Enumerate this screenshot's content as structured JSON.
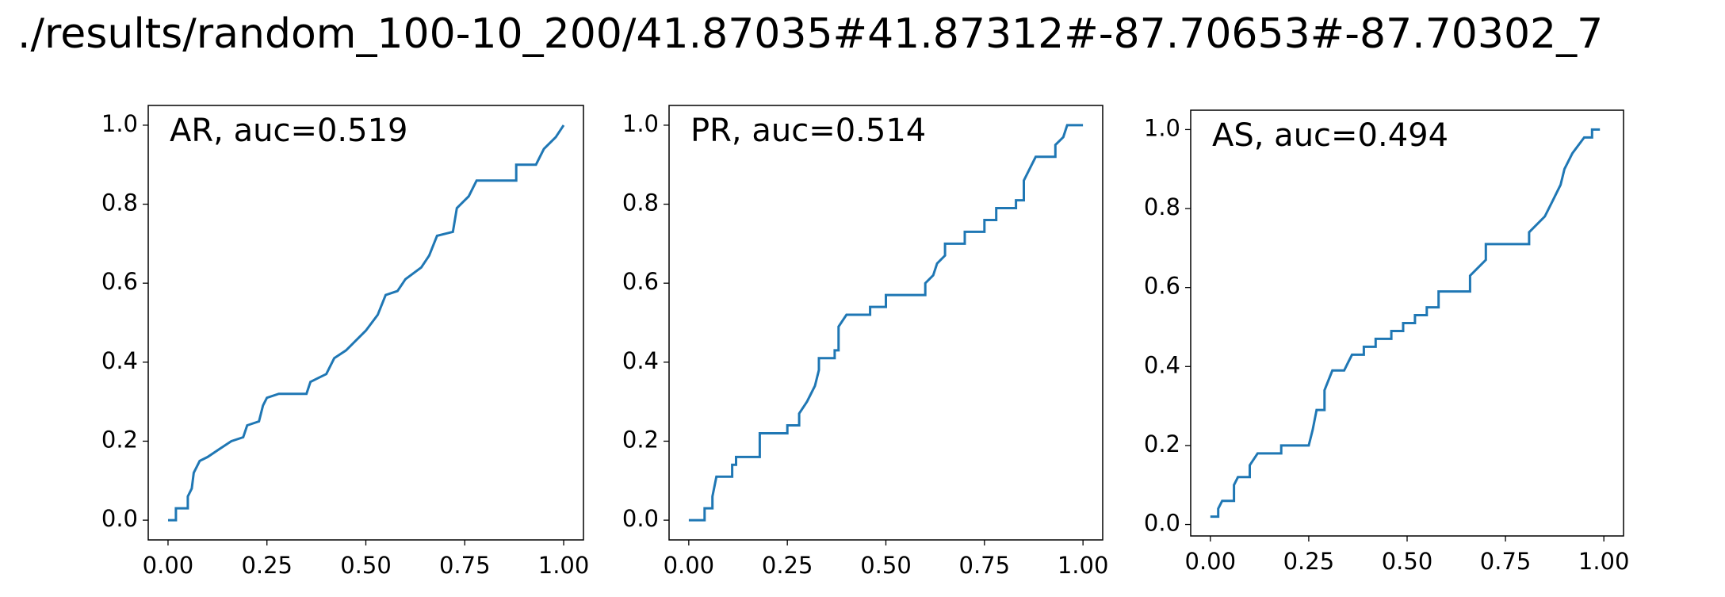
{
  "title": "./results/random_100-10_200/41.87035#41.87312#-87.70653#-87.70302_7",
  "chart_data": [
    {
      "type": "line",
      "annotation": "AR, auc=0.519",
      "xlim": [
        -0.05,
        1.05
      ],
      "ylim": [
        -0.05,
        1.05
      ],
      "xticks": [
        {
          "value": 0,
          "label": "0.00"
        },
        0.25,
        {
          "value": 0.5,
          "label": "0.50"
        },
        0.75,
        {
          "value": 1,
          "label": "1.00"
        }
      ],
      "yticks": [
        {
          "value": 0,
          "label": "0.0"
        },
        0.2,
        0.4,
        0.6,
        0.8,
        {
          "value": 1,
          "label": "1.0"
        }
      ],
      "color": "#1f77b4",
      "x": [
        0,
        0.02,
        0.02,
        0.05,
        0.05,
        0.06,
        0.065,
        0.08,
        0.1,
        0.13,
        0.16,
        0.19,
        0.2,
        0.23,
        0.24,
        0.25,
        0.28,
        0.35,
        0.36,
        0.38,
        0.4,
        0.42,
        0.45,
        0.47,
        0.5,
        0.53,
        0.55,
        0.58,
        0.6,
        0.64,
        0.66,
        0.68,
        0.72,
        0.73,
        0.76,
        0.78,
        0.88,
        0.88,
        0.93,
        0.95,
        0.98,
        1.0
      ],
      "values": [
        0,
        0,
        0.03,
        0.03,
        0.06,
        0.08,
        0.12,
        0.15,
        0.16,
        0.18,
        0.2,
        0.21,
        0.24,
        0.25,
        0.29,
        0.31,
        0.32,
        0.32,
        0.35,
        0.36,
        0.37,
        0.41,
        0.43,
        0.45,
        0.48,
        0.52,
        0.57,
        0.58,
        0.61,
        0.64,
        0.67,
        0.72,
        0.73,
        0.79,
        0.82,
        0.86,
        0.86,
        0.9,
        0.9,
        0.94,
        0.97,
        1.0
      ]
    },
    {
      "type": "line",
      "annotation": "PR, auc=0.514",
      "xlim": [
        -0.05,
        1.05
      ],
      "ylim": [
        -0.05,
        1.05
      ],
      "xticks": [
        {
          "value": 0,
          "label": "0.00"
        },
        0.25,
        {
          "value": 0.5,
          "label": "0.50"
        },
        0.75,
        {
          "value": 1,
          "label": "1.00"
        }
      ],
      "yticks": [
        {
          "value": 0,
          "label": "0.0"
        },
        0.2,
        0.4,
        0.6,
        0.8,
        {
          "value": 1,
          "label": "1.0"
        }
      ],
      "color": "#1f77b4",
      "x": [
        0,
        0.04,
        0.04,
        0.06,
        0.06,
        0.07,
        0.11,
        0.11,
        0.12,
        0.12,
        0.18,
        0.18,
        0.25,
        0.25,
        0.28,
        0.28,
        0.3,
        0.32,
        0.33,
        0.33,
        0.37,
        0.37,
        0.38,
        0.38,
        0.4,
        0.46,
        0.46,
        0.5,
        0.5,
        0.6,
        0.6,
        0.62,
        0.63,
        0.65,
        0.65,
        0.7,
        0.7,
        0.75,
        0.75,
        0.78,
        0.78,
        0.83,
        0.83,
        0.85,
        0.85,
        0.87,
        0.88,
        0.93,
        0.93,
        0.95,
        0.96,
        1.0
      ],
      "values": [
        0,
        0,
        0.03,
        0.03,
        0.06,
        0.11,
        0.11,
        0.14,
        0.14,
        0.16,
        0.16,
        0.22,
        0.22,
        0.24,
        0.24,
        0.27,
        0.3,
        0.34,
        0.38,
        0.41,
        0.41,
        0.43,
        0.43,
        0.49,
        0.52,
        0.52,
        0.54,
        0.54,
        0.57,
        0.57,
        0.6,
        0.62,
        0.65,
        0.67,
        0.7,
        0.7,
        0.73,
        0.73,
        0.76,
        0.76,
        0.79,
        0.79,
        0.81,
        0.81,
        0.86,
        0.9,
        0.92,
        0.92,
        0.95,
        0.97,
        1.0,
        1.0
      ]
    },
    {
      "type": "line",
      "annotation": "AS, auc=0.494",
      "xlim": [
        -0.05,
        1.05
      ],
      "ylim": [
        -0.029,
        1.049
      ],
      "xticks": [
        {
          "value": 0,
          "label": "0.00"
        },
        0.25,
        {
          "value": 0.5,
          "label": "0.50"
        },
        0.75,
        {
          "value": 1,
          "label": "1.00"
        }
      ],
      "yticks": [
        {
          "value": 0,
          "label": "0.0"
        },
        0.2,
        0.4,
        0.6,
        0.8,
        {
          "value": 1,
          "label": "1.0"
        }
      ],
      "color": "#1f77b4",
      "x": [
        0,
        0.02,
        0.02,
        0.03,
        0.06,
        0.06,
        0.07,
        0.1,
        0.1,
        0.12,
        0.18,
        0.18,
        0.25,
        0.26,
        0.27,
        0.29,
        0.29,
        0.31,
        0.34,
        0.35,
        0.36,
        0.39,
        0.39,
        0.42,
        0.42,
        0.46,
        0.46,
        0.49,
        0.49,
        0.52,
        0.52,
        0.55,
        0.55,
        0.58,
        0.58,
        0.66,
        0.66,
        0.68,
        0.7,
        0.7,
        0.81,
        0.81,
        0.85,
        0.87,
        0.89,
        0.9,
        0.92,
        0.95,
        0.97,
        0.97,
        0.99
      ],
      "values": [
        0.02,
        0.02,
        0.04,
        0.06,
        0.06,
        0.1,
        0.12,
        0.12,
        0.15,
        0.18,
        0.18,
        0.2,
        0.2,
        0.24,
        0.29,
        0.29,
        0.34,
        0.39,
        0.39,
        0.41,
        0.43,
        0.43,
        0.45,
        0.45,
        0.47,
        0.47,
        0.49,
        0.49,
        0.51,
        0.51,
        0.53,
        0.53,
        0.55,
        0.55,
        0.59,
        0.59,
        0.63,
        0.65,
        0.67,
        0.71,
        0.71,
        0.74,
        0.78,
        0.82,
        0.86,
        0.9,
        0.94,
        0.98,
        0.98,
        1.0,
        1.0
      ]
    }
  ]
}
